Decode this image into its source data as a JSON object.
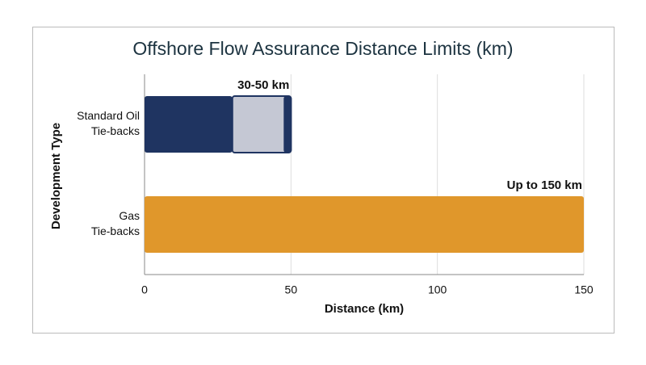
{
  "chart_data": {
    "type": "bar",
    "orientation": "horizontal",
    "stacked": true,
    "title": "Offshore Flow Assurance Distance Limits (km)",
    "x_label": "Distance (km)",
    "y_label": "Development Type",
    "categories": [
      [
        "Standard Oil",
        "Tie-backs"
      ],
      [
        "Gas",
        "Tie-backs"
      ]
    ],
    "series": [
      {
        "color": "#1f3461",
        "values": [
          30,
          null
        ]
      },
      {
        "color": "#c5c8d4",
        "values": [
          20,
          null
        ]
      },
      {
        "color": "#e0972b",
        "values": [
          null,
          150
        ]
      }
    ],
    "annotations": [
      "30-50 km",
      "Up to 150 km"
    ],
    "xlim": [
      0,
      150
    ],
    "xticks": [
      0,
      50,
      100,
      150
    ],
    "grid": true
  }
}
